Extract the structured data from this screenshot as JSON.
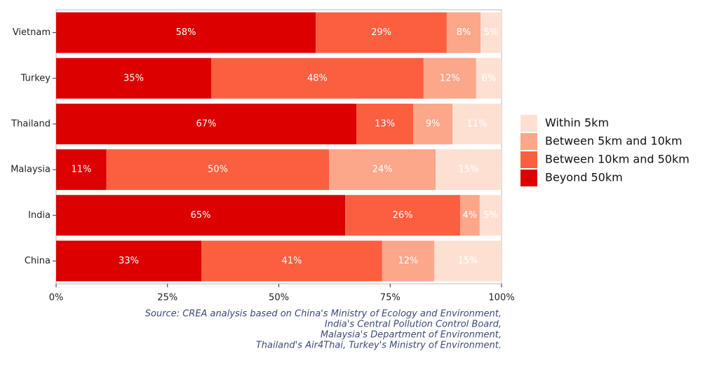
{
  "chart_data": {
    "type": "stacked_bar_horizontal",
    "categories": [
      "Vietnam",
      "Turkey",
      "Thailand",
      "Malaysia",
      "India",
      "China"
    ],
    "series": [
      {
        "name": "Within 5km",
        "color": "#fee0d2",
        "values": [
          4.7,
          5.7,
          11.0,
          14.8,
          4.9,
          15.1
        ],
        "value_labels": [
          "5%",
          "6%",
          "11%",
          "15%",
          "5%",
          "15%"
        ]
      },
      {
        "name": "Between 5km and 10km",
        "color": "#fca68a",
        "values": [
          7.6,
          11.8,
          8.8,
          23.9,
          4.4,
          11.7
        ],
        "value_labels": [
          "8%",
          "12%",
          "9%",
          "24%",
          "4%",
          "12%"
        ]
      },
      {
        "name": "Between 10km and 50km",
        "color": "#fc5f40",
        "values": [
          29.4,
          47.7,
          12.8,
          50.0,
          25.8,
          40.6
        ],
        "value_labels": [
          "29%",
          "48%",
          "13%",
          "50%",
          "26%",
          "41%"
        ]
      },
      {
        "name": "Beyond 50km",
        "color": "#dd0000",
        "values": [
          58.3,
          34.8,
          67.4,
          11.3,
          64.9,
          32.6
        ],
        "value_labels": [
          "58%",
          "35%",
          "67%",
          "11%",
          "65%",
          "33%"
        ]
      }
    ],
    "xlim": [
      0,
      100
    ],
    "xticks": [
      {
        "value": 0,
        "label": "0%"
      },
      {
        "value": 25,
        "label": "25%"
      },
      {
        "value": 50,
        "label": "50%"
      },
      {
        "value": 75,
        "label": "75%"
      },
      {
        "value": 100,
        "label": "100%"
      }
    ],
    "legend": "right",
    "caption": [
      "Source: CREA analysis based on China's Ministry of Ecology and Environment,",
      "India's Central Pollution Control Board,",
      "Malaysia's Department of Environment,",
      "Thailand's Air4Thai, Turkey's Ministry of Environment."
    ]
  }
}
